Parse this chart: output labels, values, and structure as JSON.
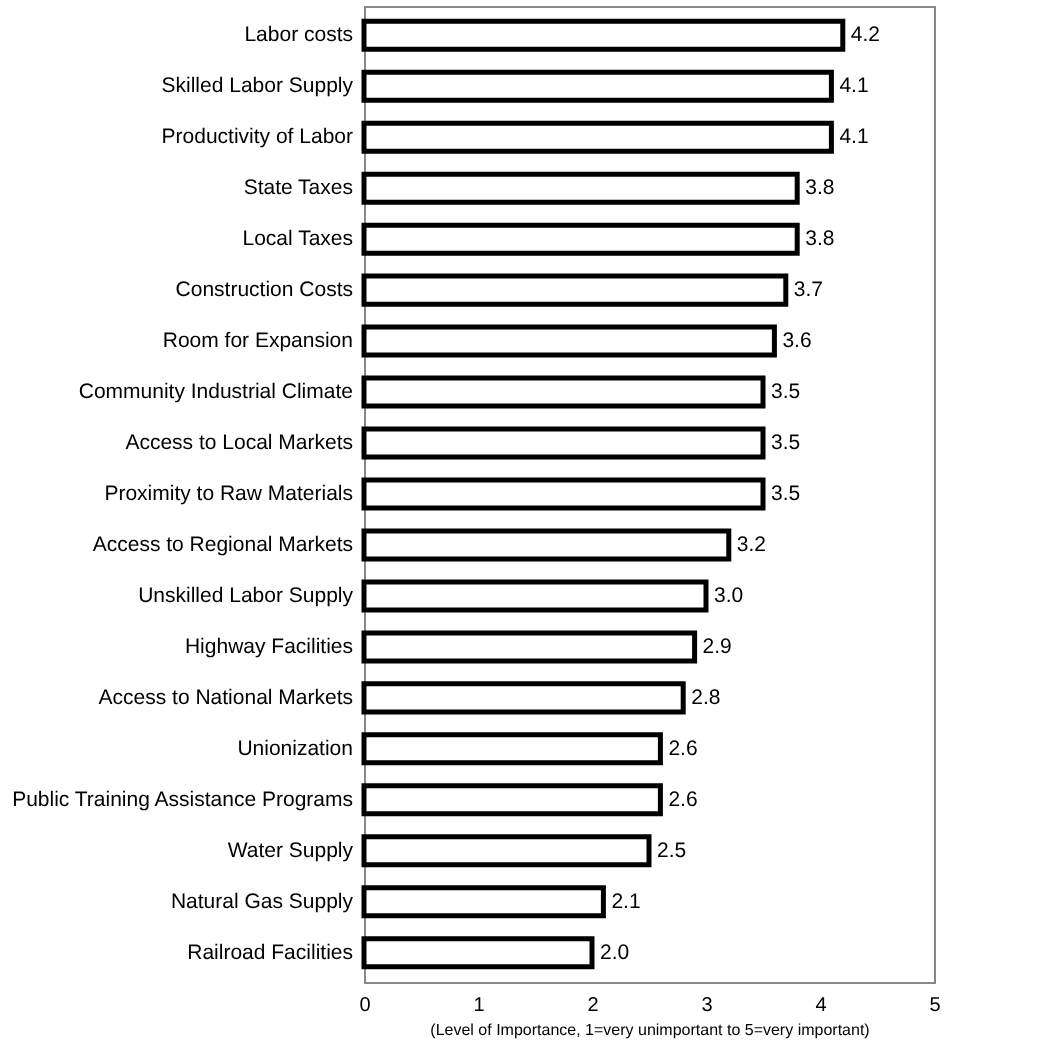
{
  "chart_data": {
    "type": "bar",
    "orientation": "horizontal",
    "xlabel": "(Level of Importance, 1=very unimportant to 5=very important)",
    "categories": [
      "Labor costs",
      "Skilled Labor Supply",
      "Productivity of Labor",
      "State Taxes",
      "Local Taxes",
      "Construction Costs",
      "Room for Expansion",
      "Community Industrial Climate",
      "Access to Local Markets",
      "Proximity to Raw Materials",
      "Access to Regional Markets",
      "Unskilled Labor Supply",
      "Highway Facilities",
      "Access to National Markets",
      "Unionization",
      "Public Training Assistance Programs",
      "Water Supply",
      "Natural Gas Supply",
      "Railroad Facilities"
    ],
    "values": [
      4.2,
      4.1,
      4.1,
      3.8,
      3.8,
      3.7,
      3.6,
      3.5,
      3.5,
      3.5,
      3.2,
      3.0,
      2.9,
      2.8,
      2.6,
      2.6,
      2.5,
      2.1,
      2.0
    ],
    "value_labels": [
      "4.2",
      "4.1",
      "4.1",
      "3.8",
      "3.8",
      "3.7",
      "3.6",
      "3.5",
      "3.5",
      "3.5",
      "3.2",
      "3.0",
      "2.9",
      "2.8",
      "2.6",
      "2.6",
      "2.5",
      "2.1",
      "2.0"
    ],
    "color": "#ffffff",
    "xlim": [
      0,
      5
    ],
    "xticks": [
      0,
      1,
      2,
      3,
      4,
      5
    ],
    "grid": false
  }
}
